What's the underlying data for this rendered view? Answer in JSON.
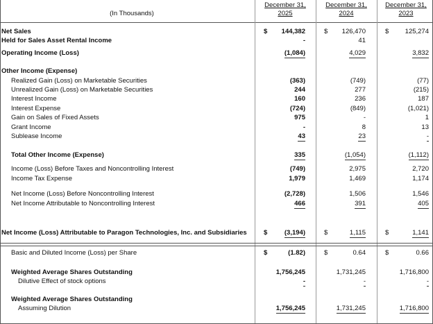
{
  "header": {
    "units": "(In Thousands)",
    "columns": [
      {
        "date": "December 31,",
        "year": "2025"
      },
      {
        "date": "December 31,",
        "year": "2024"
      },
      {
        "date": "December 31,",
        "year": "2023"
      }
    ]
  },
  "rows": [
    {
      "label": "Net Sales",
      "bold": true,
      "currency": [
        "$",
        "$",
        "$"
      ],
      "values": [
        "144,382",
        "126,470",
        "125,274"
      ]
    },
    {
      "label": "Held for Sales Asset Rental Income",
      "bold": true,
      "values": [
        "-",
        "41",
        null
      ]
    },
    {
      "label": "Operating Income (Loss)",
      "bold": true,
      "values": [
        "(1,084)",
        "4,029",
        "3,832"
      ]
    },
    {
      "label": "Other Income (Expense)",
      "bold": true
    },
    {
      "label": "Realized Gain (Loss) on Marketable Securities",
      "indent": true,
      "values": [
        "(363)",
        "(749)",
        "(77)"
      ]
    },
    {
      "label": "Unrealized Gain (Loss) on Marketable Securities",
      "indent": true,
      "values": [
        "244",
        "277",
        "(215)"
      ]
    },
    {
      "label": "Interest Income",
      "indent": true,
      "values": [
        "160",
        "236",
        "187"
      ]
    },
    {
      "label": "Interest Expense",
      "indent": true,
      "values": [
        "(724)",
        "(849)",
        "(1,021)"
      ]
    },
    {
      "label": "Gain on Sales of Fixed Assets",
      "indent": true,
      "values": [
        "975",
        "-",
        "1"
      ]
    },
    {
      "label": "Grant Income",
      "indent": true,
      "values": [
        "-",
        "8",
        "13"
      ]
    },
    {
      "label": "Sublease Income",
      "indent": true,
      "values": [
        "43",
        "23",
        "-"
      ]
    },
    {
      "label": "Total Other Income (Expense)",
      "bold": true,
      "indent": true,
      "values": [
        "335",
        "(1,054)",
        "(1,112)"
      ]
    },
    {
      "label": "Income (Loss) Before Taxes and Noncontrolling Interest",
      "indent": true,
      "values": [
        "(749)",
        "2,975",
        "2,720"
      ]
    },
    {
      "label": "Income Tax Expense",
      "indent": true,
      "values": [
        "1,979",
        "1,469",
        "1,174"
      ]
    },
    {
      "label": "Net Income (Loss) Before Noncontrolling Interest",
      "indent": true,
      "values": [
        "(2,728)",
        "1,506",
        "1,546"
      ]
    },
    {
      "label": "Net Income Attributable to Noncontrolling Interest",
      "indent": true,
      "values": [
        "466",
        "391",
        "405"
      ]
    },
    {
      "label": "Net Income (Loss) Attributable to Paragon Technologies, Inc. and Subsidiaries",
      "bold": true,
      "currency": [
        "$",
        "$",
        "$"
      ],
      "values": [
        "(3,194)",
        "1,115",
        "1,141"
      ]
    },
    {
      "label": "Basic and Diluted Income (Loss) per Share",
      "indent": true,
      "currency": [
        "$",
        "$",
        "$"
      ],
      "values": [
        "(1.82)",
        "0.64",
        "0.66"
      ]
    },
    {
      "label": "Weighted Average Shares Outstanding",
      "bold": true,
      "indent": true,
      "values": [
        "1,756,245",
        "1,731,245",
        "1,716,800"
      ]
    },
    {
      "label": "Dilutive Effect of stock options",
      "indent": true,
      "sub": true,
      "values": [
        "-",
        "-",
        "-"
      ]
    },
    {
      "label": "Weighted Average Shares Outstanding",
      "bold": true,
      "indent": true
    },
    {
      "label": "Assuming Dilution",
      "indent": true,
      "sub": true,
      "values": [
        "1,756,245",
        "1,731,245",
        "1,716,800"
      ]
    }
  ]
}
